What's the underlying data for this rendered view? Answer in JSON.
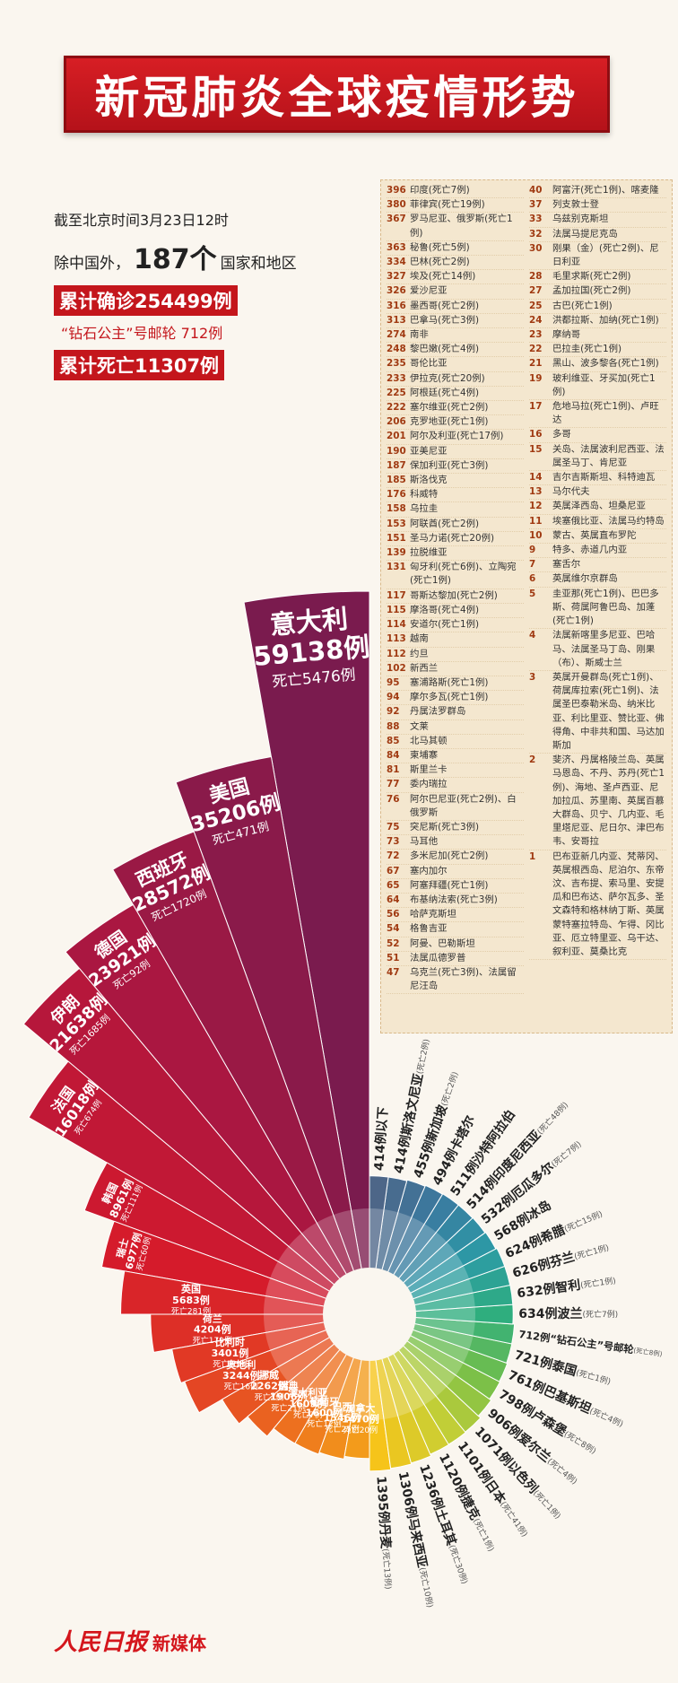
{
  "header": {
    "title": "新冠肺炎全球疫情形势"
  },
  "summary": {
    "as_of": "截至北京时间3月23日12时",
    "line2": [
      "除中国外，",
      "187个",
      "国家和地区"
    ],
    "confirmed": "累计确诊254499例",
    "cruise": "“钻石公主”号邮轮 712例",
    "deaths": "累计死亡11307例"
  },
  "chart_data": {
    "type": "rose",
    "groups": [
      {
        "categories": [
          "意大利",
          "美国",
          "西班牙",
          "德国",
          "伊朗",
          "法国",
          "韩国",
          "瑞士",
          "英国",
          "荷兰",
          "比利时",
          "奥地利",
          "挪威",
          "瑞典",
          "澳大利亚",
          "葡萄牙",
          "巴西",
          "加拿大"
        ],
        "values": [
          59138,
          35206,
          28572,
          23921,
          21638,
          16018,
          8961,
          6977,
          5683,
          4204,
          3401,
          3244,
          2262,
          1906,
          1609,
          1600,
          1546,
          1470
        ],
        "value_labels": [
          "59138例",
          "35206例",
          "28572例",
          "23921例",
          "21638例",
          "16018例",
          "8961例",
          "6977例",
          "5683例",
          "4204例",
          "3401例",
          "3244例",
          "2262例",
          "1906例",
          "1609例",
          "1600例",
          "1546例",
          "1470例"
        ],
        "death_labels": [
          "死亡5476例",
          "死亡471例",
          "死亡1720例",
          "死亡92例",
          "死亡1685例",
          "死亡674例",
          "死亡111例",
          "死亡60例",
          "死亡281例",
          "死亡179例",
          "死亡75例",
          "死亡16例",
          "死亡7例",
          "死亡21例",
          "死亡7例",
          "死亡12例",
          "死亡25例",
          "死亡20例"
        ],
        "color_stops": [
          "#7a1b4e",
          "#b0173f",
          "#d4192b",
          "#e23b25",
          "#ec6a1f",
          "#f39b1b"
        ]
      },
      {
        "categories": [
          "丹麦",
          "马来西亚",
          "土耳其",
          "捷克",
          "日本",
          "以色列",
          "爱尔兰",
          "卢森堡",
          "巴基斯坦",
          "泰国",
          "“钻石公主”号邮轮",
          "波兰",
          "智利",
          "芬兰",
          "希腊",
          "冰岛",
          "厄瓜多尔",
          "印度尼西亚",
          "沙特阿拉伯",
          "卡塔尔",
          "新加坡",
          "斯洛文尼亚"
        ],
        "values": [
          1395,
          1306,
          1236,
          1120,
          1101,
          1071,
          906,
          798,
          761,
          721,
          712,
          634,
          632,
          626,
          624,
          568,
          532,
          514,
          511,
          494,
          455,
          414
        ],
        "value_labels": [
          "1395例",
          "1306例",
          "1236例",
          "1120例",
          "1101例",
          "1071例",
          "906例",
          "798例",
          "761例",
          "721例",
          "712例",
          "634例",
          "632例",
          "626例",
          "624例",
          "568例",
          "532例",
          "514例",
          "511例",
          "494例",
          "455例",
          "414例"
        ],
        "death_labels": [
          "(死亡13例)",
          "(死亡10例)",
          "(死亡30例)",
          "(死亡1例)",
          "(死亡41例)",
          "(死亡1例)",
          "(死亡4例)",
          "(死亡8例)",
          "(死亡4例)",
          "(死亡1例)",
          "(死亡8例)",
          "(死亡7例)",
          "(死亡1例)",
          "(死亡1例)",
          "(死亡15例)",
          null,
          "(死亡7例)",
          "(死亡48例)",
          null,
          null,
          "(死亡2例)",
          "(死亡2例)"
        ],
        "color_stops": [
          "#f6c41a",
          "#c9cf35",
          "#74bf4a",
          "#2fae7e",
          "#2c9aa6",
          "#3a7ba0",
          "#4d6688"
        ]
      }
    ],
    "small_label": "414例以下"
  },
  "country_list": {
    "columns": [
      [
        [
          "396",
          "印度(死亡7例)"
        ],
        [
          "380",
          "菲律宾(死亡19例)"
        ],
        [
          "367",
          "罗马尼亚、俄罗斯(死亡1例)"
        ],
        [
          "363",
          "秘鲁(死亡5例)"
        ],
        [
          "334",
          "巴林(死亡2例)"
        ],
        [
          "327",
          "埃及(死亡14例)"
        ],
        [
          "326",
          "爱沙尼亚"
        ],
        [
          "316",
          "墨西哥(死亡2例)"
        ],
        [
          "313",
          "巴拿马(死亡3例)"
        ],
        [
          "274",
          "南非"
        ],
        [
          "248",
          "黎巴嫩(死亡4例)"
        ],
        [
          "235",
          "哥伦比亚"
        ],
        [
          "233",
          "伊拉克(死亡20例)"
        ],
        [
          "225",
          "阿根廷(死亡4例)"
        ],
        [
          "222",
          "塞尔维亚(死亡2例)"
        ],
        [
          "206",
          "克罗地亚(死亡1例)"
        ],
        [
          "201",
          "阿尔及利亚(死亡17例)"
        ],
        [
          "190",
          "亚美尼亚"
        ],
        [
          "187",
          "保加利亚(死亡3例)"
        ],
        [
          "185",
          "斯洛伐克"
        ],
        [
          "176",
          "科威特"
        ],
        [
          "158",
          "乌拉圭"
        ],
        [
          "153",
          "阿联酋(死亡2例)"
        ],
        [
          "151",
          "圣马力诺(死亡20例)"
        ],
        [
          "139",
          "拉脱维亚"
        ],
        [
          "131",
          "匈牙利(死亡6例)、立陶宛(死亡1例)"
        ],
        [
          "117",
          "哥斯达黎加(死亡2例)"
        ],
        [
          "115",
          "摩洛哥(死亡4例)"
        ],
        [
          "114",
          "安道尔(死亡1例)"
        ],
        [
          "113",
          "越南"
        ],
        [
          "112",
          "约旦"
        ],
        [
          "102",
          "新西兰"
        ],
        [
          "95",
          "塞浦路斯(死亡1例)"
        ],
        [
          "94",
          "摩尔多瓦(死亡1例)"
        ],
        [
          "92",
          "丹属法罗群岛"
        ],
        [
          "88",
          "文莱"
        ],
        [
          "85",
          "北马其顿"
        ],
        [
          "84",
          "柬埔寨"
        ],
        [
          "81",
          "斯里兰卡"
        ],
        [
          "77",
          "委内瑞拉"
        ],
        [
          "76",
          "阿尔巴尼亚(死亡2例)、白俄罗斯"
        ],
        [
          "75",
          "突尼斯(死亡3例)"
        ],
        [
          "73",
          "马耳他"
        ],
        [
          "72",
          "多米尼加(死亡2例)"
        ],
        [
          "67",
          "塞内加尔"
        ],
        [
          "65",
          "阿塞拜疆(死亡1例)"
        ],
        [
          "64",
          "布基纳法索(死亡3例)"
        ],
        [
          "56",
          "哈萨克斯坦"
        ],
        [
          "54",
          "格鲁吉亚"
        ],
        [
          "52",
          "阿曼、巴勒斯坦"
        ],
        [
          "51",
          "法属瓜德罗普"
        ],
        [
          "47",
          "乌克兰(死亡3例)、法属留尼汪岛"
        ]
      ],
      [
        [
          "40",
          "阿富汗(死亡1例)、喀麦隆"
        ],
        [
          "37",
          "列支敦士登"
        ],
        [
          "33",
          "乌兹别克斯坦"
        ],
        [
          "32",
          "法属马提尼克岛"
        ],
        [
          "30",
          "刚果（金）(死亡2例)、尼日利亚"
        ],
        [
          "28",
          "毛里求斯(死亡2例)"
        ],
        [
          "27",
          "孟加拉国(死亡2例)"
        ],
        [
          "25",
          "古巴(死亡1例)"
        ],
        [
          "24",
          "洪都拉斯、加纳(死亡1例)"
        ],
        [
          "23",
          "摩纳哥"
        ],
        [
          "22",
          "巴拉圭(死亡1例)"
        ],
        [
          "21",
          "黑山、波多黎各(死亡1例)"
        ],
        [
          "19",
          "玻利维亚、牙买加(死亡1例)"
        ],
        [
          "17",
          "危地马拉(死亡1例)、卢旺达"
        ],
        [
          "16",
          "多哥"
        ],
        [
          "15",
          "关岛、法属波利尼西亚、法属圣马丁、肯尼亚"
        ],
        [
          "14",
          "吉尔吉斯斯坦、科特迪瓦"
        ],
        [
          "13",
          "马尔代夫"
        ],
        [
          "12",
          "英属泽西岛、坦桑尼亚"
        ],
        [
          "11",
          "埃塞俄比亚、法属马约特岛"
        ],
        [
          "10",
          "蒙古、英属直布罗陀"
        ],
        [
          "9",
          "特多、赤道几内亚"
        ],
        [
          "7",
          "塞舌尔"
        ],
        [
          "6",
          "英属维尔京群岛"
        ],
        [
          "5",
          "圭亚那(死亡1例)、巴巴多斯、荷属阿鲁巴岛、加蓬(死亡1例)"
        ],
        [
          "4",
          "法属新喀里多尼亚、巴哈马、法属圣马丁岛、刚果（布）、斯威士兰"
        ],
        [
          "3",
          "英属开曼群岛(死亡1例)、荷属库拉索(死亡1例)、法属圣巴泰勒米岛、纳米比亚、利比里亚、赞比亚、佛得角、中非共和国、马达加斯加"
        ],
        [
          "2",
          "斐济、丹属格陵兰岛、英属马恩岛、不丹、苏丹(死亡1例)、海地、圣卢西亚、尼加拉瓜、苏里南、英属百慕大群岛、贝宁、几内亚、毛里塔尼亚、尼日尔、津巴布韦、安哥拉"
        ],
        [
          "1",
          "巴布亚新几内亚、梵蒂冈、英属根西岛、尼泊尔、东帝汶、吉布提、索马里、安提瓜和巴布达、萨尔瓦多、圣文森特和格林纳丁斯、英属蒙特塞拉特岛、乍得、冈比亚、厄立特里亚、乌干达、叙利亚、莫桑比克"
        ]
      ]
    ]
  },
  "footer": {
    "logo": "人民日报",
    "brand": "新媒体"
  }
}
